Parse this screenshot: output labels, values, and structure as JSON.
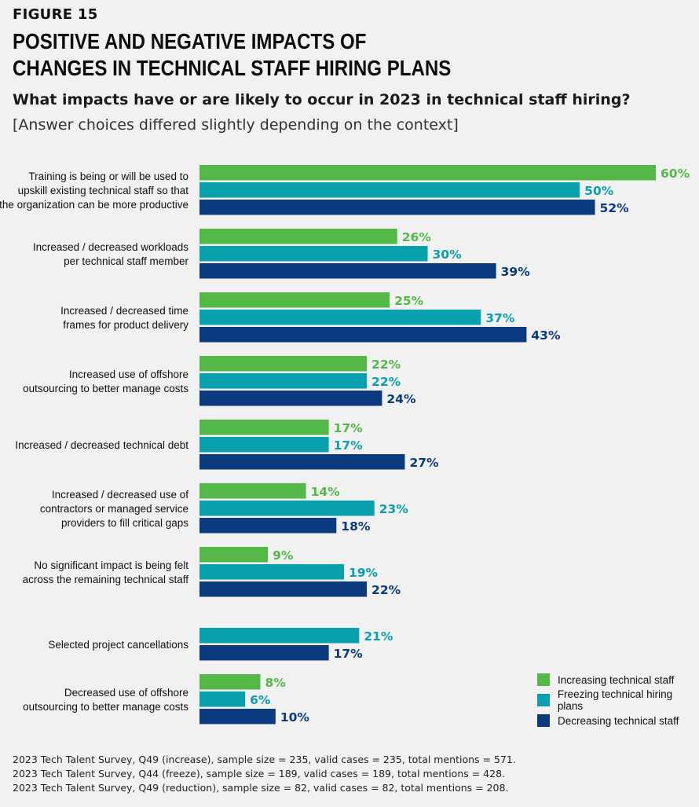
{
  "figure_label": "FIGURE 15",
  "title_lines": [
    "POSITIVE AND NEGATIVE IMPACTS OF",
    "CHANGES IN TECHNICAL STAFF HIRING PLANS"
  ],
  "question": "What impacts have or are likely to occur in 2023 in technical staff hiring?",
  "note": "[Answer choices differed slightly depending on the context]",
  "colors": {
    "increasing": "#53b848",
    "freezing": "#0aa1ae",
    "decreasing": "#0b3a7e"
  },
  "chart_data": {
    "type": "bar",
    "orientation": "horizontal",
    "title": "POSITIVE AND NEGATIVE IMPACTS OF CHANGES IN TECHNICAL STAFF HIRING PLANS",
    "categories": [
      [
        "Training is being or will be used to",
        "upskill existing technical staff so that",
        "the organization can be more productive"
      ],
      [
        "Increased / decreased workloads",
        "per technical staff member"
      ],
      [
        "Increased / decreased time",
        "frames for product delivery"
      ],
      [
        "Increased use of offshore",
        "outsourcing to better manage costs"
      ],
      [
        "Increased / decreased technical debt"
      ],
      [
        "Increased / decreased use of",
        "contractors or managed service",
        "providers to fill critical gaps"
      ],
      [
        "No significant impact is being felt",
        "across the remaining technical staff"
      ],
      [
        "Selected project cancellations"
      ],
      [
        "Decreased use of offshore",
        "outsourcing to better manage costs"
      ]
    ],
    "series": [
      {
        "name": "Increasing technical staff",
        "color_key": "increasing",
        "values": [
          60,
          26,
          25,
          22,
          17,
          14,
          9,
          null,
          8
        ]
      },
      {
        "name": "Freezing technical hiring plans",
        "color_key": "freezing",
        "values": [
          50,
          30,
          37,
          22,
          17,
          23,
          19,
          21,
          6
        ]
      },
      {
        "name": "Decreasing technical staff",
        "color_key": "decreasing",
        "values": [
          52,
          39,
          43,
          24,
          27,
          18,
          22,
          17,
          10
        ]
      }
    ],
    "value_suffix": "%",
    "xlim": [
      0,
      60
    ],
    "grid": false,
    "legend_position": "bottom-right"
  },
  "footer_lines": [
    "2023 Tech Talent Survey, Q49 (increase), sample size = 235, valid cases = 235, total mentions = 571.",
    "2023 Tech Talent Survey, Q44 (freeze), sample size = 189, valid cases = 189, total mentions  = 428.",
    "2023 Tech Talent Survey, Q49 (reduction), sample size = 82, valid cases = 82, total mentions  = 208."
  ]
}
